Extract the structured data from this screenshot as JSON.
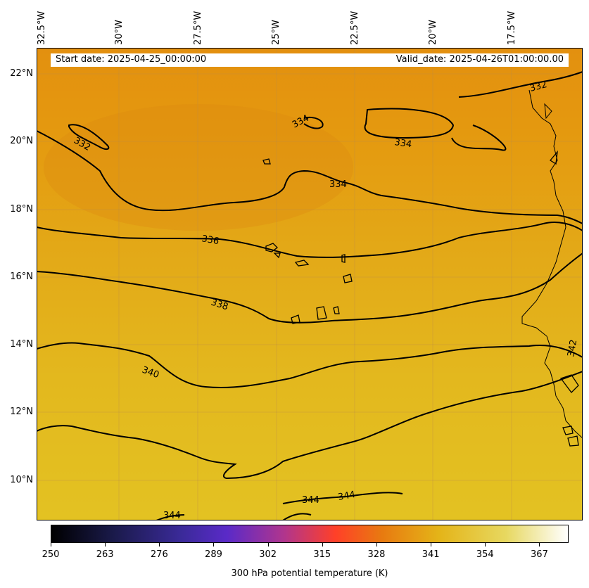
{
  "header": {
    "start_date": "Start date: 2025-04-25_00:00:00",
    "valid_date": "Valid_date: 2025-04-26T01:00:00.00"
  },
  "longitude_labels": [
    "32.5°W",
    "30°W",
    "27.5°W",
    "25°W",
    "22.5°W",
    "20°W",
    "17.5°W"
  ],
  "latitude_labels": [
    "22°N",
    "20°N",
    "18°N",
    "16°N",
    "14°N",
    "12°N",
    "10°N"
  ],
  "contour_labels": [
    "332",
    "332",
    "334",
    "334",
    "334",
    "336",
    "338",
    "340",
    "342",
    "344",
    "344",
    "344"
  ],
  "colorbar": {
    "label": "300 hPa potential temperature (K)",
    "ticks": [
      "250",
      "263",
      "276",
      "289",
      "302",
      "315",
      "328",
      "341",
      "354",
      "367"
    ],
    "range": [
      250,
      374
    ],
    "colormap": "CMRmap"
  },
  "colors": {
    "field_north": "#e3900f",
    "field_south": "#e3c222",
    "contour": "#000000"
  }
}
